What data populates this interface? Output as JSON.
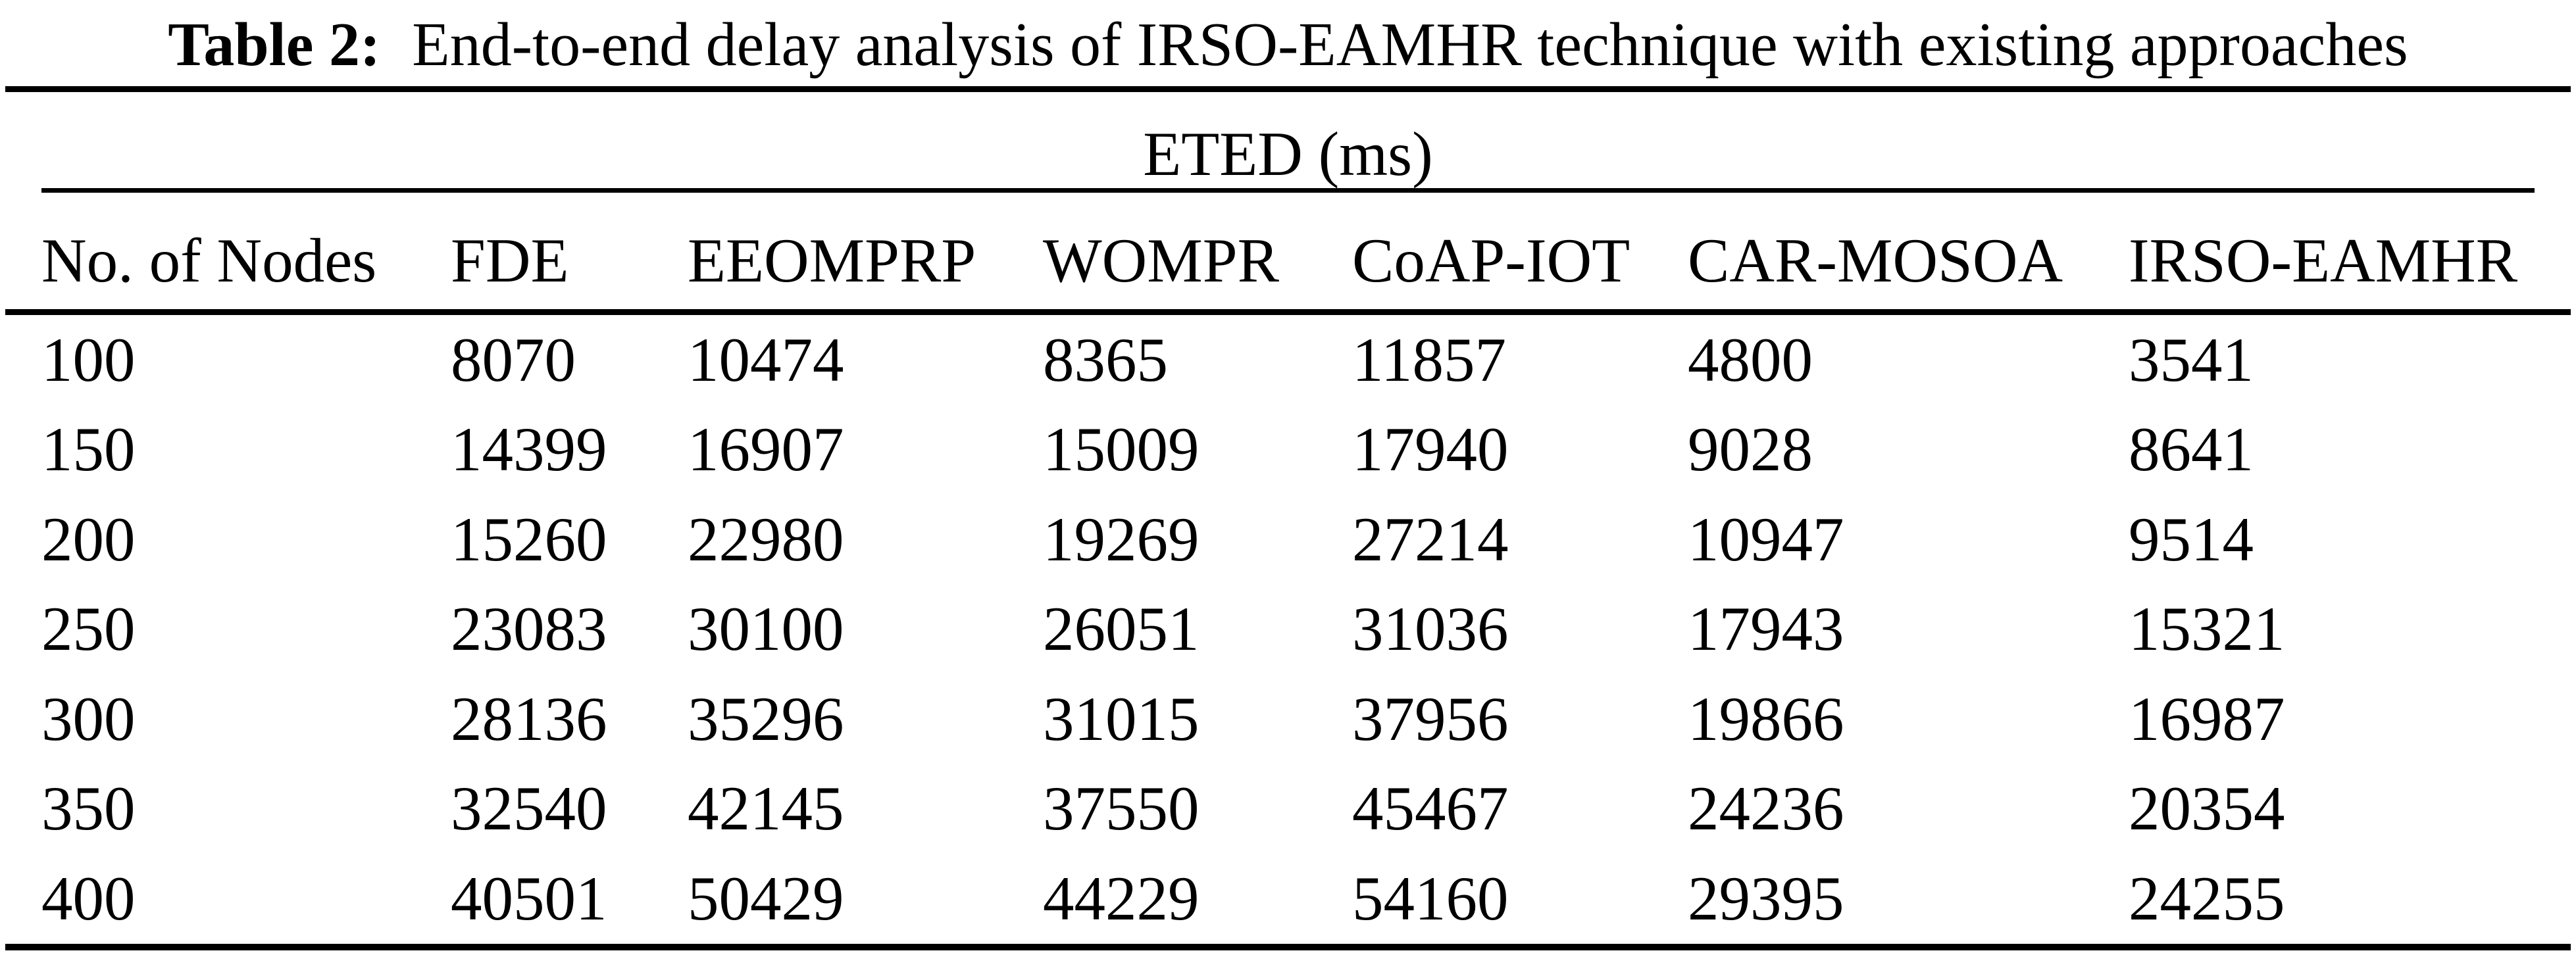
{
  "caption": {
    "label": "Table 2:",
    "text": "End-to-end delay analysis of IRSO-EAMHR technique with existing approaches"
  },
  "table": {
    "group_header": "ETED (ms)",
    "columns": [
      "No. of Nodes",
      "FDE",
      "EEOMPRP",
      "WOMPR",
      "CoAP-IOT",
      "CAR-MOSOA",
      "IRSO-EAMHR"
    ],
    "rows": [
      [
        100,
        8070,
        10474,
        8365,
        11857,
        4800,
        3541
      ],
      [
        150,
        14399,
        16907,
        15009,
        17940,
        9028,
        8641
      ],
      [
        200,
        15260,
        22980,
        19269,
        27214,
        10947,
        9514
      ],
      [
        250,
        23083,
        30100,
        26051,
        31036,
        17943,
        15321
      ],
      [
        300,
        28136,
        35296,
        31015,
        37956,
        19866,
        16987
      ],
      [
        350,
        32540,
        42145,
        37550,
        45467,
        24236,
        20354
      ],
      [
        400,
        40501,
        50429,
        44229,
        54160,
        29395,
        24255
      ]
    ]
  },
  "colors": {
    "text": "#000000",
    "background": "#ffffff",
    "rule": "#000000"
  }
}
